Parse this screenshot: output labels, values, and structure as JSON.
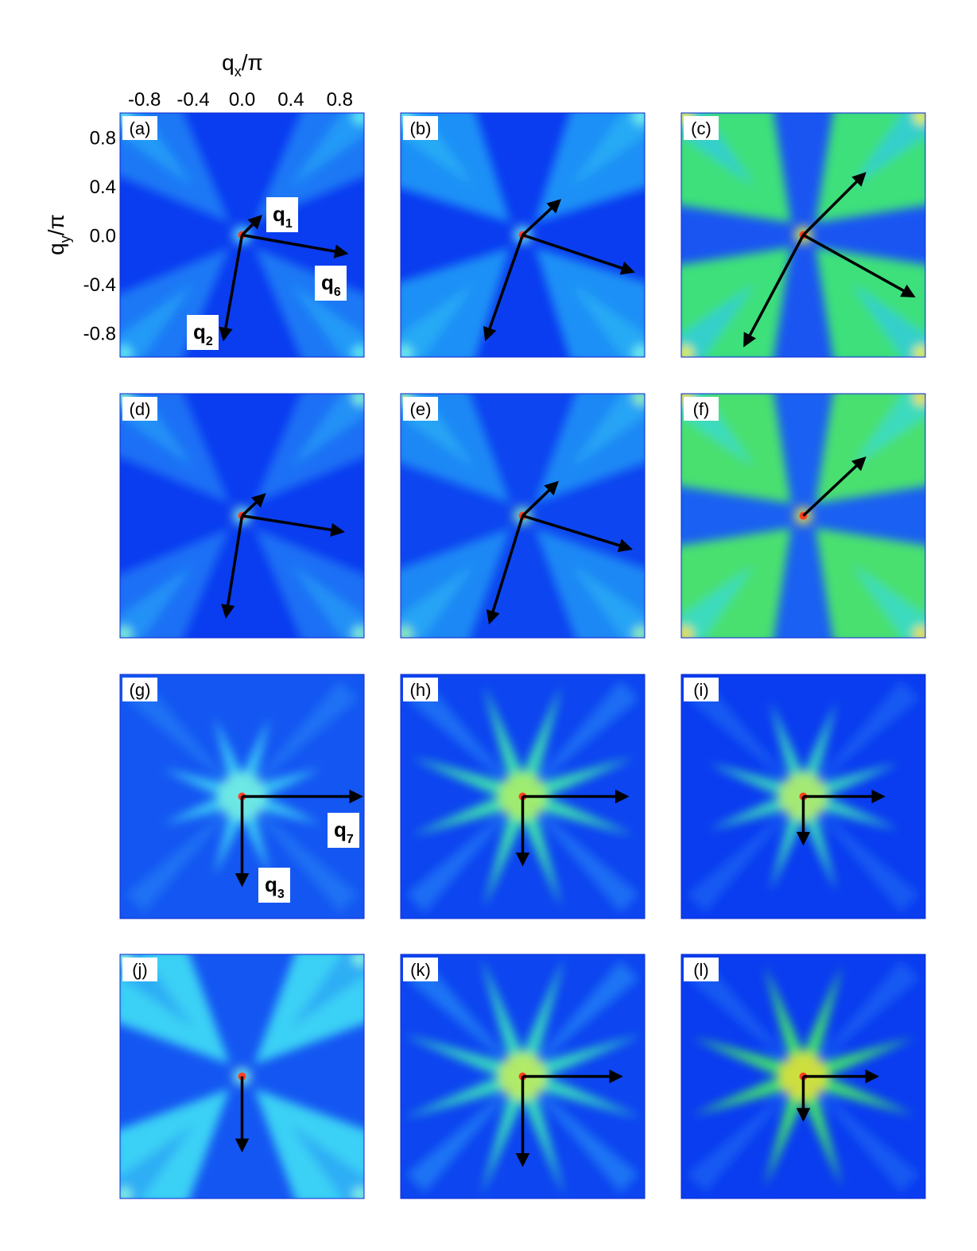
{
  "axes": {
    "xlabel": {
      "base": "q",
      "sub": "x",
      "rest": "/π"
    },
    "ylabel": {
      "base": "q",
      "sub": "y",
      "rest": "/π"
    },
    "xticks": [
      -0.8,
      -0.4,
      {
        "value": 0,
        "label": "0.0"
      },
      0.4,
      0.8
    ],
    "yticks": [
      0.8,
      0.4,
      {
        "value": 0,
        "label": "0.0"
      },
      -0.4,
      -0.8
    ]
  },
  "panels": [
    {
      "label": "(a)",
      "vectors": [
        {
          "base": "q",
          "sub": "1"
        },
        {
          "base": "q",
          "sub": "6"
        },
        {
          "base": "q",
          "sub": "2"
        }
      ]
    },
    {
      "label": "(b)"
    },
    {
      "label": "(c)"
    },
    {
      "label": "(d)"
    },
    {
      "label": "(e)"
    },
    {
      "label": "(f)"
    },
    {
      "label": "(g)",
      "vectors": [
        {
          "base": "q",
          "sub": "7"
        },
        {
          "base": "q",
          "sub": "3"
        }
      ]
    },
    {
      "label": "(h)"
    },
    {
      "label": "(i)"
    },
    {
      "label": "(j)"
    },
    {
      "label": "(k)"
    },
    {
      "label": "(l)"
    }
  ]
}
